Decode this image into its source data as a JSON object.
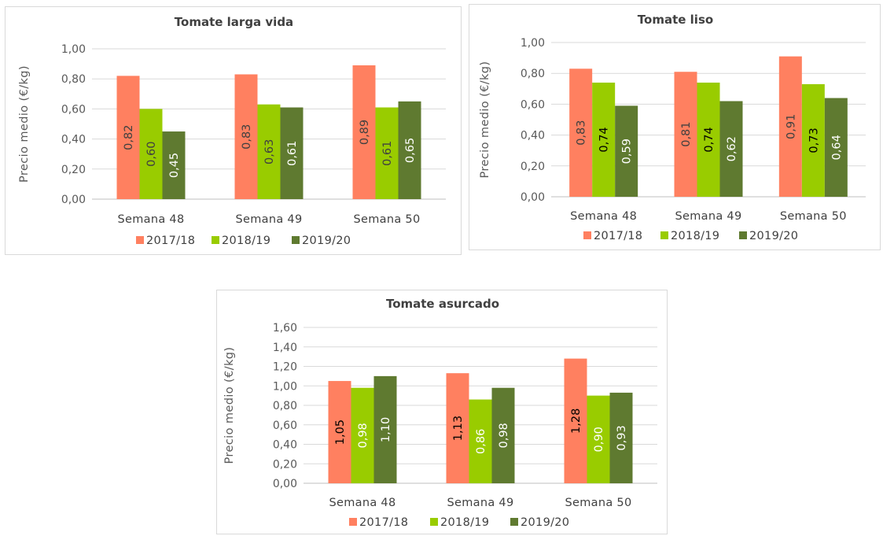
{
  "charts": [
    {
      "chart_data": {
        "type": "bar",
        "title": "Tomate larga vida",
        "ylabel": "Precio medio  (€/kg)",
        "categories": [
          "Semana 48",
          "Semana 49",
          "Semana 50"
        ],
        "series": [
          {
            "name": "2017/18",
            "color": "#FF8060",
            "values": [
              0.82,
              0.83,
              0.89
            ],
            "labels": [
              "0,82",
              "0,83",
              "0,89"
            ],
            "label_color": "#404040"
          },
          {
            "name": "2018/19",
            "color": "#99CC00",
            "values": [
              0.6,
              0.63,
              0.61
            ],
            "labels": [
              "0,60",
              "0,63",
              "0,61"
            ],
            "label_color": "#404040"
          },
          {
            "name": "2019/20",
            "color": "#5F7A30",
            "values": [
              0.45,
              0.61,
              0.65
            ],
            "labels": [
              "0,45",
              "0,61",
              "0,65"
            ],
            "label_color": "#ffffff"
          }
        ],
        "ylim": [
          0,
          1.0
        ],
        "yticks": [
          "0,00",
          "0,20",
          "0,40",
          "0,60",
          "0,80",
          "1,00"
        ],
        "grid": true,
        "legend": "bottom"
      }
    },
    {
      "chart_data": {
        "type": "bar",
        "title": "Tomate liso",
        "ylabel": "Precio medio  (€/kg)",
        "categories": [
          "Semana 48",
          "Semana 49",
          "Semana 50"
        ],
        "series": [
          {
            "name": "2017/18",
            "color": "#FF8060",
            "values": [
              0.83,
              0.81,
              0.91
            ],
            "labels": [
              "0,83",
              "0,81",
              "0,91"
            ],
            "label_color": "#404040"
          },
          {
            "name": "2018/19",
            "color": "#99CC00",
            "values": [
              0.74,
              0.74,
              0.73
            ],
            "labels": [
              "0,74",
              "0,74",
              "0,73"
            ],
            "label_color": "#000000"
          },
          {
            "name": "2019/20",
            "color": "#5F7A30",
            "values": [
              0.59,
              0.62,
              0.64
            ],
            "labels": [
              "0,59",
              "0,62",
              "0,64"
            ],
            "label_color": "#ffffff"
          }
        ],
        "ylim": [
          0,
          1.0
        ],
        "yticks": [
          "0,00",
          "0,20",
          "0,40",
          "0,60",
          "0,80",
          "1,00"
        ],
        "grid": true,
        "legend": "bottom"
      }
    },
    {
      "chart_data": {
        "type": "bar",
        "title": "Tomate asurcado",
        "ylabel": "Precio medio  (€/kg)",
        "categories": [
          "Semana 48",
          "Semana 49",
          "Semana 50"
        ],
        "series": [
          {
            "name": "2017/18",
            "color": "#FF8060",
            "values": [
              1.05,
              1.13,
              1.28
            ],
            "labels": [
              "1,05",
              "1,13",
              "1,28"
            ],
            "label_color": "#000000"
          },
          {
            "name": "2018/19",
            "color": "#99CC00",
            "values": [
              0.98,
              0.86,
              0.9
            ],
            "labels": [
              "0,98",
              "0,86",
              "0,90"
            ],
            "label_color": "#ffffff"
          },
          {
            "name": "2019/20",
            "color": "#5F7A30",
            "values": [
              1.1,
              0.98,
              0.93
            ],
            "labels": [
              "1,10",
              "0,98",
              "0,93"
            ],
            "label_color": "#ffffff"
          }
        ],
        "ylim": [
          0,
          1.6
        ],
        "yticks": [
          "0,00",
          "0,20",
          "0,40",
          "0,60",
          "0,80",
          "1,00",
          "1,20",
          "1,40",
          "1,60"
        ],
        "grid": true,
        "legend": "bottom"
      }
    }
  ]
}
